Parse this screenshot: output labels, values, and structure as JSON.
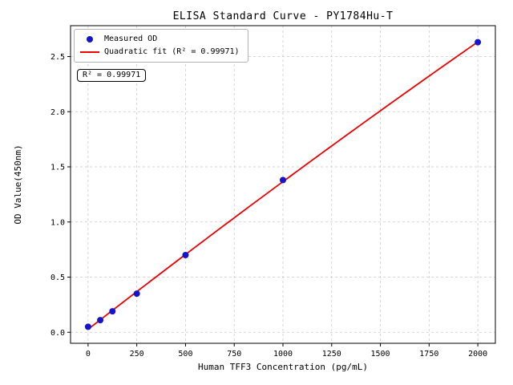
{
  "chart_data": {
    "type": "scatter",
    "title": "ELISA Standard Curve - PY1784Hu-T",
    "xlabel": "Human TFF3 Concentration (pg/mL)",
    "ylabel": "OD Value(450nm)",
    "xlim": [
      -90,
      2090
    ],
    "ylim": [
      -0.1,
      2.78
    ],
    "xticks": [
      0,
      250,
      500,
      750,
      1000,
      1250,
      1500,
      1750,
      2000
    ],
    "yticks": [
      0.0,
      0.5,
      1.0,
      1.5,
      2.0,
      2.5
    ],
    "grid": true,
    "legend_position": "upper left",
    "annotation": "R² = 0.99971",
    "series": [
      {
        "name": "Measured OD",
        "type": "scatter",
        "color": "#1414cc",
        "x": [
          0,
          62.5,
          125,
          250,
          500,
          1000,
          2000
        ],
        "y": [
          0.05,
          0.11,
          0.19,
          0.35,
          0.7,
          1.38,
          2.63
        ]
      },
      {
        "name": "Quadratic fit (R² = 0.99971)",
        "type": "line",
        "fit": "quadratic",
        "color": "#ee0000"
      }
    ]
  }
}
